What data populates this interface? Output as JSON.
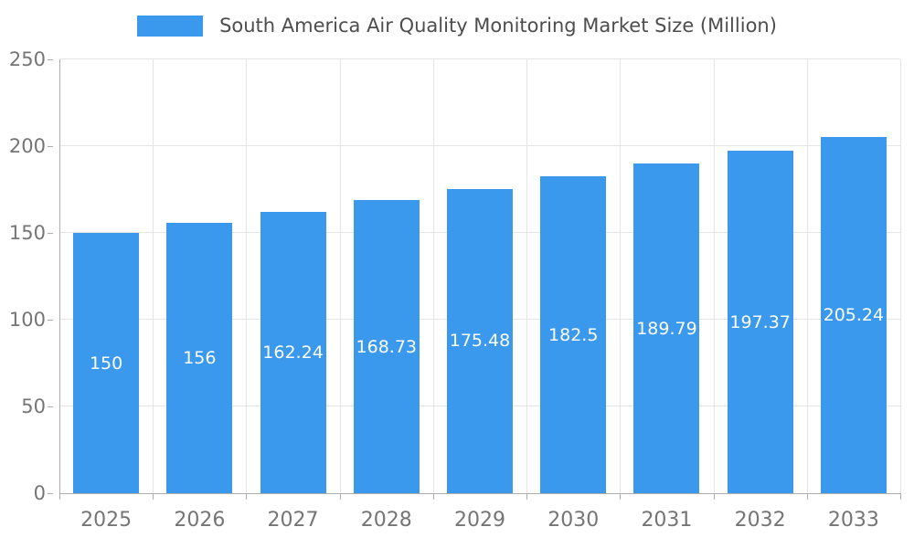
{
  "chart_data": {
    "type": "bar",
    "title": "South America Air Quality Monitoring Market Size (Million)",
    "categories": [
      "2025",
      "2026",
      "2027",
      "2028",
      "2029",
      "2030",
      "2031",
      "2032",
      "2033"
    ],
    "values": [
      150,
      156,
      162.24,
      168.73,
      175.48,
      182.5,
      189.79,
      197.37,
      205.24
    ],
    "value_labels": [
      "150",
      "156",
      "162.24",
      "168.73",
      "175.48",
      "182.5",
      "189.79",
      "197.37",
      "205.24"
    ],
    "xlabel": "",
    "ylabel": "",
    "ylim": [
      0,
      250
    ],
    "yticks": [
      0,
      50,
      100,
      150,
      200,
      250
    ],
    "grid": true,
    "legend_position": "top",
    "colors": {
      "bar": "#3a99ec",
      "bar_label": "#ffffff",
      "axis_text": "#757575",
      "title_text": "#4d4d4d",
      "grid_line": "#e4e4e4",
      "axis_line": "#adadad"
    }
  }
}
